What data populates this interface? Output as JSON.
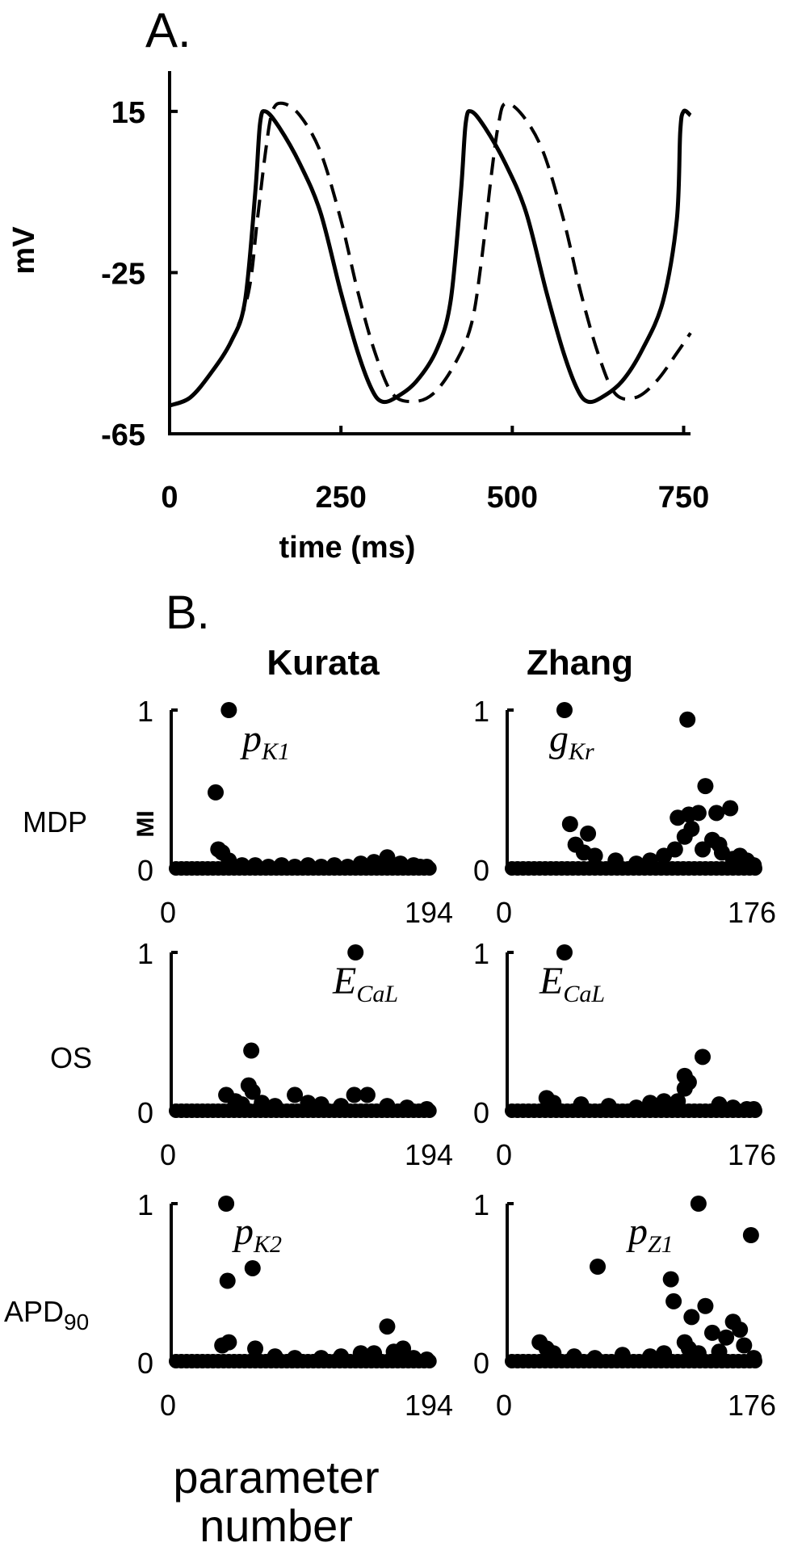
{
  "figure": {
    "panel_a_label": "A.",
    "panel_b_label": "B.",
    "model_headers": [
      "Kurata",
      "Zhang"
    ],
    "row_labels": [
      "MDP",
      "OS",
      "APD"
    ],
    "row_label_subscript": "90",
    "mi_axis_label": "MI",
    "x_axis_label_line1": "parameter",
    "x_axis_label_line2": "number"
  },
  "chart_data": [
    {
      "type": "line",
      "panel": "A.",
      "xlabel": "time (ms)",
      "ylabel": "mV",
      "xlim": [
        0,
        760
      ],
      "ylim": [
        -65,
        25
      ],
      "xticks": [
        0,
        250,
        500,
        750
      ],
      "yticks": [
        15,
        -25,
        -65
      ],
      "series": [
        {
          "style": "solid",
          "x": [
            0,
            30,
            60,
            90,
            110,
            125,
            132,
            140,
            160,
            190,
            220,
            250,
            275,
            295,
            310,
            330,
            360,
            390,
            410,
            425,
            432,
            440,
            460,
            490,
            520,
            550,
            575,
            595,
            610,
            630,
            660,
            690,
            720,
            740,
            745,
            750,
            760
          ],
          "y": [
            -58,
            -56,
            -50,
            -42,
            -32,
            -5,
            12,
            15,
            11,
            2,
            -10,
            -30,
            -45,
            -54,
            -57,
            -56,
            -52,
            -44,
            -32,
            -5,
            12,
            15,
            11,
            2,
            -10,
            -30,
            -45,
            -54,
            -57,
            -56,
            -52,
            -44,
            -32,
            -12,
            10,
            15,
            14
          ]
        },
        {
          "style": "dashed",
          "x": [
            0,
            30,
            60,
            90,
            115,
            128,
            140,
            150,
            165,
            190,
            220,
            250,
            275,
            300,
            325,
            355,
            385,
            415,
            440,
            455,
            470,
            480,
            490,
            515,
            545,
            575,
            600,
            625,
            650,
            680,
            710,
            740,
            760
          ],
          "y": [
            -58,
            -56,
            -50,
            -42,
            -30,
            -12,
            5,
            15,
            17,
            14,
            5,
            -12,
            -30,
            -45,
            -55,
            -57,
            -55,
            -48,
            -38,
            -22,
            0,
            12,
            17,
            14,
            5,
            -12,
            -30,
            -45,
            -55,
            -56,
            -52,
            -45,
            -40
          ]
        }
      ]
    },
    {
      "type": "scatter",
      "model": "Kurata",
      "row": "MDP",
      "ylabel": "MI",
      "xlim": [
        0,
        194
      ],
      "ylim": [
        0,
        1
      ],
      "xtick_labels": [
        "0",
        "194"
      ],
      "ytick_labels": [
        "1",
        "0"
      ],
      "annotation": {
        "base": "p",
        "sub": "K1"
      },
      "points": {
        "x": [
          40,
          30,
          32,
          35,
          40,
          50,
          60,
          70,
          80,
          90,
          100,
          110,
          120,
          130,
          140,
          150,
          160,
          170,
          180,
          185,
          190
        ],
        "y": [
          1.0,
          0.48,
          0.12,
          0.1,
          0.05,
          0.02,
          0.02,
          0.01,
          0.02,
          0.01,
          0.02,
          0.01,
          0.02,
          0.01,
          0.03,
          0.04,
          0.07,
          0.03,
          0.02,
          0.01,
          0.01
        ]
      }
    },
    {
      "type": "scatter",
      "model": "Zhang",
      "row": "MDP",
      "ylabel": "MI",
      "xlim": [
        0,
        176
      ],
      "ylim": [
        0,
        1
      ],
      "xtick_labels": [
        "0",
        "176"
      ],
      "ytick_labels": [
        "1",
        "0"
      ],
      "annotation": {
        "base": "g",
        "sub": "Kr"
      },
      "points": {
        "x": [
          38,
          127,
          42,
          55,
          46,
          52,
          60,
          75,
          90,
          100,
          110,
          118,
          120,
          125,
          128,
          130,
          135,
          138,
          140,
          145,
          148,
          150,
          152,
          158,
          160,
          165,
          170,
          172,
          175
        ],
        "y": [
          1.0,
          0.94,
          0.28,
          0.22,
          0.15,
          0.1,
          0.08,
          0.05,
          0.03,
          0.05,
          0.08,
          0.12,
          0.32,
          0.2,
          0.34,
          0.25,
          0.35,
          0.12,
          0.52,
          0.18,
          0.35,
          0.15,
          0.1,
          0.38,
          0.06,
          0.08,
          0.05,
          0.03,
          0.02
        ]
      }
    },
    {
      "type": "scatter",
      "model": "Kurata",
      "row": "OS",
      "ylabel": "MI",
      "xlim": [
        0,
        194
      ],
      "ylim": [
        0,
        1
      ],
      "xtick_labels": [
        "0",
        "194"
      ],
      "ytick_labels": [
        "1",
        "0"
      ],
      "annotation": {
        "base": "E",
        "sub": "CaL"
      },
      "points": {
        "x": [
          136,
          57,
          55,
          58,
          38,
          45,
          50,
          65,
          75,
          90,
          100,
          110,
          125,
          135,
          145,
          160,
          175,
          190
        ],
        "y": [
          1.0,
          0.38,
          0.16,
          0.12,
          0.1,
          0.06,
          0.04,
          0.05,
          0.03,
          0.1,
          0.05,
          0.04,
          0.03,
          0.1,
          0.1,
          0.03,
          0.02,
          0.01
        ]
      }
    },
    {
      "type": "scatter",
      "model": "Zhang",
      "row": "OS",
      "ylabel": "MI",
      "xlim": [
        0,
        176
      ],
      "ylim": [
        0,
        1
      ],
      "xtick_labels": [
        "0",
        "176"
      ],
      "ytick_labels": [
        "1",
        "0"
      ],
      "annotation": {
        "base": "E",
        "sub": "CaL"
      },
      "points": {
        "x": [
          38,
          138,
          125,
          128,
          125,
          120,
          25,
          30,
          50,
          70,
          90,
          100,
          110,
          150,
          160,
          170,
          175
        ],
        "y": [
          1.0,
          0.34,
          0.22,
          0.18,
          0.14,
          0.06,
          0.08,
          0.05,
          0.04,
          0.03,
          0.02,
          0.05,
          0.06,
          0.04,
          0.02,
          0.01,
          0.01
        ]
      }
    },
    {
      "type": "scatter",
      "model": "Kurata",
      "row": "APD90",
      "ylabel": "MI",
      "xlim": [
        0,
        194
      ],
      "ylim": [
        0,
        1
      ],
      "xtick_labels": [
        "0",
        "194"
      ],
      "ytick_labels": [
        "1",
        "0"
      ],
      "annotation": {
        "base": "p",
        "sub": "K2"
      },
      "points": {
        "x": [
          38,
          58,
          39,
          35,
          40,
          60,
          75,
          90,
          110,
          125,
          140,
          150,
          160,
          165,
          172,
          180,
          190
        ],
        "y": [
          1.0,
          0.59,
          0.51,
          0.1,
          0.12,
          0.08,
          0.03,
          0.02,
          0.02,
          0.03,
          0.05,
          0.05,
          0.22,
          0.06,
          0.08,
          0.02,
          0.01
        ]
      }
    },
    {
      "type": "scatter",
      "model": "Zhang",
      "row": "APD90",
      "ylabel": "MI",
      "xlim": [
        0,
        176
      ],
      "ylim": [
        0,
        1
      ],
      "xtick_labels": [
        "0",
        "176"
      ],
      "ytick_labels": [
        "1",
        "0"
      ],
      "annotation": {
        "base": "p",
        "sub": "Z1"
      },
      "points": {
        "x": [
          135,
          173,
          62,
          115,
          117,
          140,
          130,
          145,
          160,
          155,
          168,
          125,
          128,
          135,
          150,
          165,
          175,
          20,
          25,
          30,
          45,
          60,
          80,
          100,
          110
        ],
        "y": [
          1.0,
          0.8,
          0.6,
          0.52,
          0.38,
          0.35,
          0.28,
          0.18,
          0.25,
          0.15,
          0.1,
          0.12,
          0.08,
          0.05,
          0.06,
          0.2,
          0.02,
          0.12,
          0.08,
          0.05,
          0.03,
          0.02,
          0.04,
          0.03,
          0.05
        ]
      }
    }
  ]
}
